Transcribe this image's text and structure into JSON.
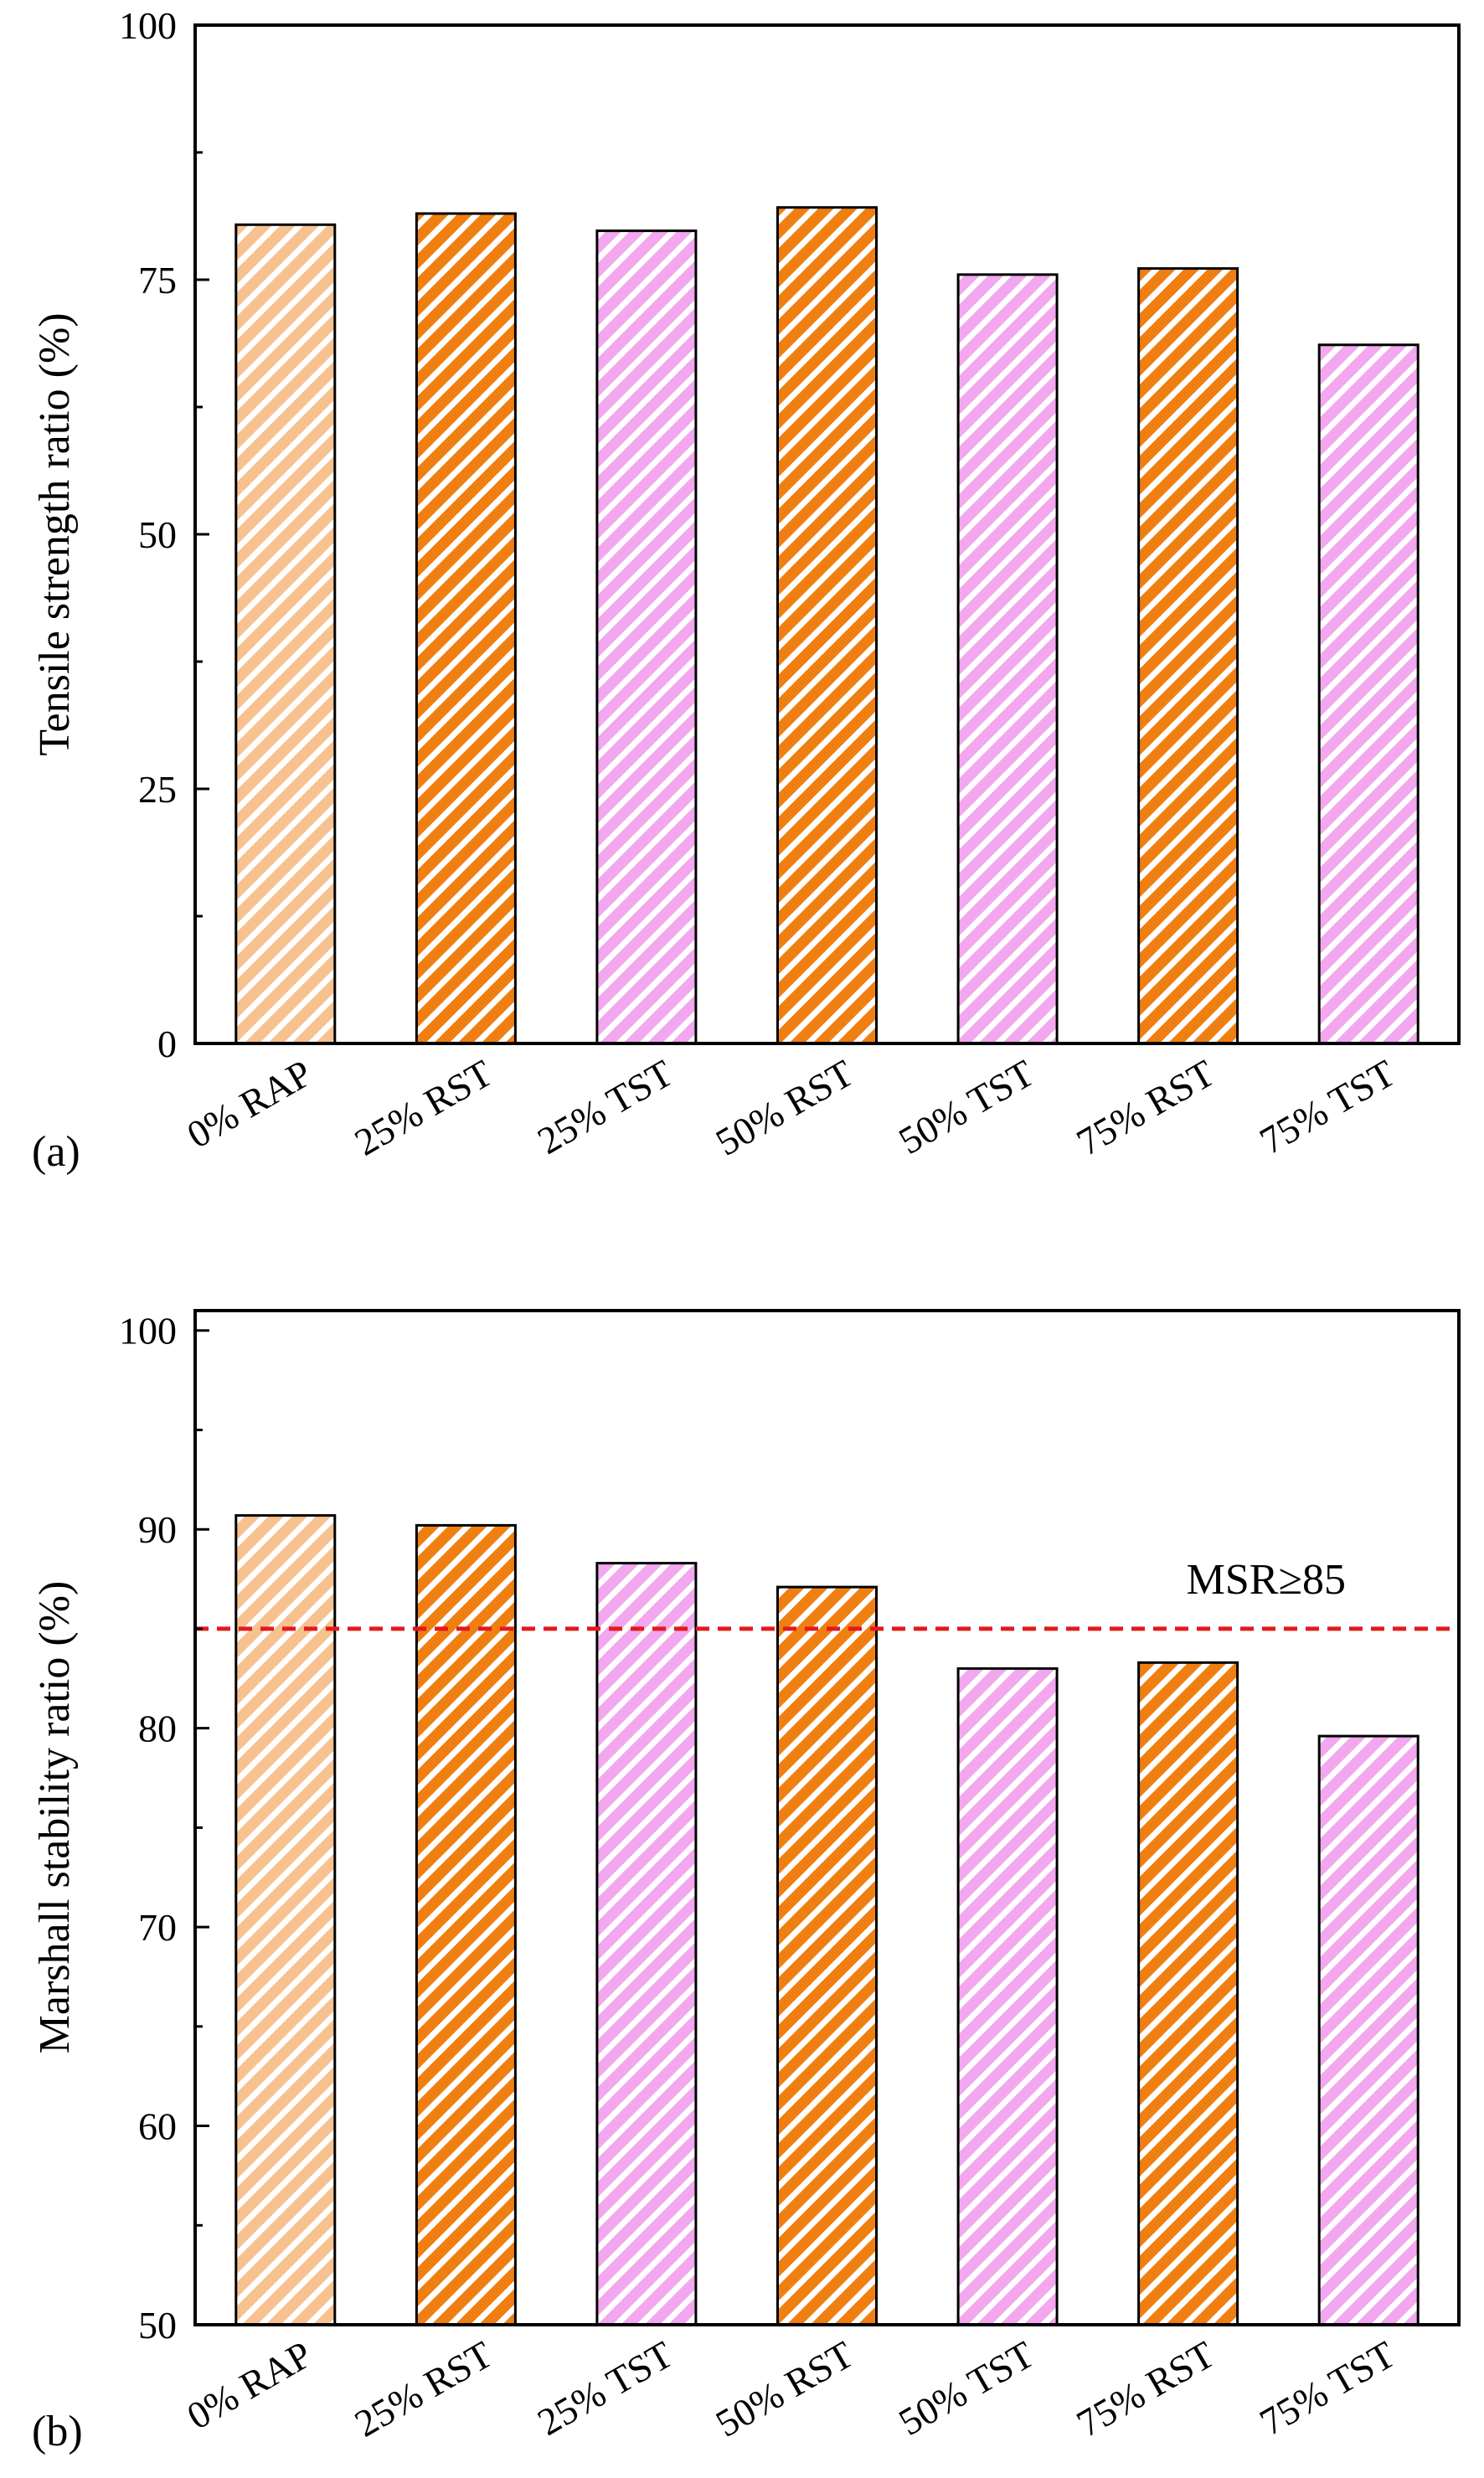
{
  "chart_data": [
    {
      "type": "bar",
      "panel_label": "(a)",
      "ylabel": "Tensile strength ratio (%)",
      "ylim": [
        0,
        100
      ],
      "yticks": [
        "0",
        "25",
        "50",
        "75",
        "100"
      ],
      "ytick_values": [
        0,
        25,
        50,
        75,
        100
      ],
      "minor_step": 12.5,
      "categories": [
        "0% RAP",
        "25% RST",
        "25% TST",
        "50% RST",
        "50% TST",
        "75% RST",
        "75% TST"
      ],
      "values": [
        80.4,
        81.5,
        79.8,
        82.1,
        75.5,
        76.1,
        68.6
      ],
      "bar_styles": [
        "rap",
        "rst",
        "tst",
        "rst",
        "tst",
        "rst",
        "tst"
      ]
    },
    {
      "type": "bar",
      "panel_label": "(b)",
      "ylabel": "Marshall stability ratio (%)",
      "ylim": [
        50,
        101
      ],
      "yticks": [
        "50",
        "60",
        "70",
        "80",
        "90",
        "100"
      ],
      "ytick_values": [
        50,
        60,
        70,
        80,
        90,
        100
      ],
      "minor_step": 5,
      "categories": [
        "0% RAP",
        "25% RST",
        "25% TST",
        "50% RST",
        "50% TST",
        "75% RST",
        "75% TST"
      ],
      "values": [
        90.7,
        90.2,
        88.3,
        87.1,
        83.0,
        83.3,
        79.6
      ],
      "bar_styles": [
        "rap",
        "rst",
        "tst",
        "rst",
        "tst",
        "rst",
        "tst"
      ],
      "reference_line": {
        "value": 85,
        "label": "MSR≥85",
        "color": "#e31a1c"
      }
    }
  ],
  "colors": {
    "rap": "#f7c28f",
    "rst": "#f07f12",
    "tst": "#f2a7ee",
    "stripe": "#ffffff"
  }
}
